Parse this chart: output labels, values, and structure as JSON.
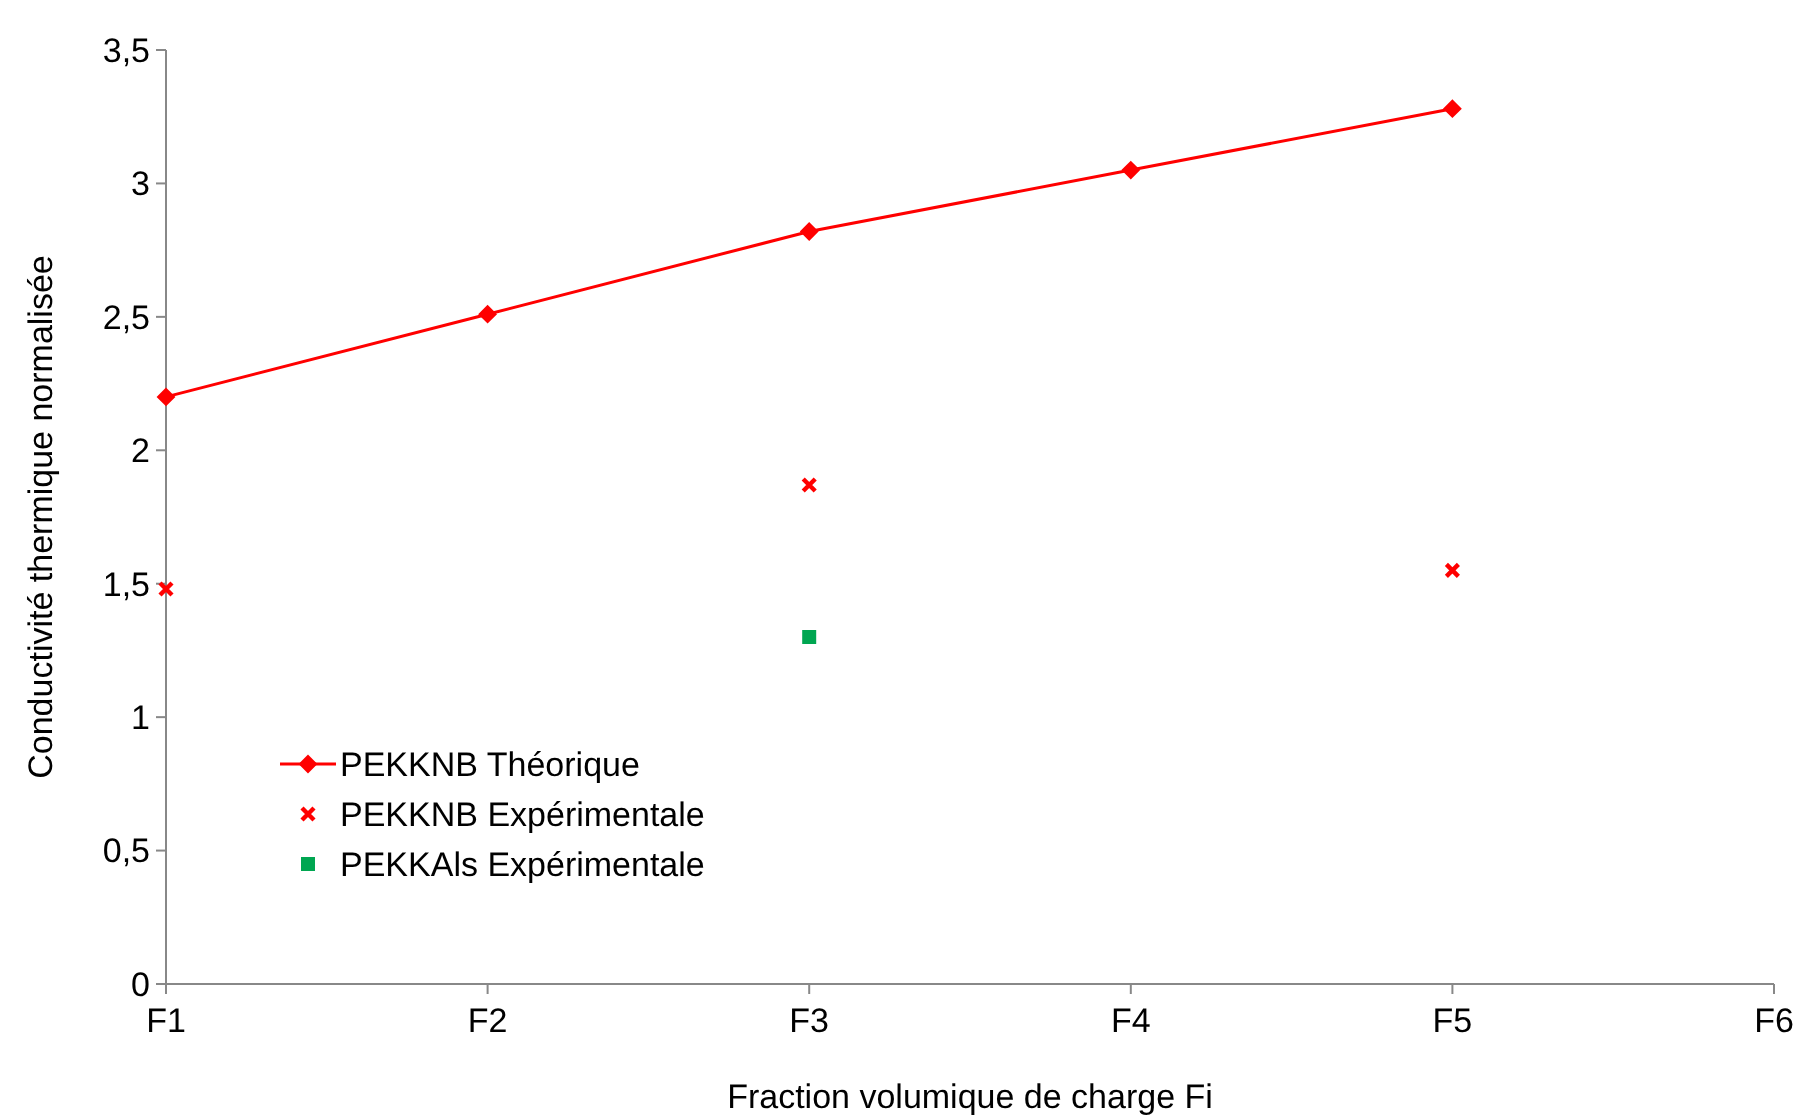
{
  "chart_data": {
    "type": "line",
    "xlabel": "Fraction volumique de charge Fi",
    "ylabel": "Conductivité thermique normalisée",
    "categories": [
      "F1",
      "F2",
      "F3",
      "F4",
      "F5",
      "F6"
    ],
    "ylim": [
      0,
      3.5
    ],
    "yticks": [
      0,
      {
        "value": 0.5,
        "label": "0,5"
      },
      1,
      {
        "value": 1.5,
        "label": "1,5"
      },
      2,
      {
        "value": 2.5,
        "label": "2,5"
      },
      3,
      {
        "value": 3.5,
        "label": "3,5"
      }
    ],
    "grid": false,
    "legend": "bottom left",
    "series": [
      {
        "name": "PEKKNB Théorique",
        "color": "#ff0000",
        "marker": "diamond",
        "values": [
          2.2,
          2.51,
          2.82,
          3.05,
          3.28,
          null
        ]
      },
      {
        "name": "PEKKNB Expérimentale",
        "type": "scatter",
        "color": "#ff0000",
        "marker": "cross",
        "values": [
          1.48,
          null,
          1.87,
          null,
          1.55,
          null
        ]
      },
      {
        "name": "PEKKAls Expérimentale",
        "type": "scatter",
        "color": "#00a651",
        "marker": "square",
        "values": [
          null,
          null,
          1.3,
          null,
          null,
          null
        ]
      }
    ]
  }
}
